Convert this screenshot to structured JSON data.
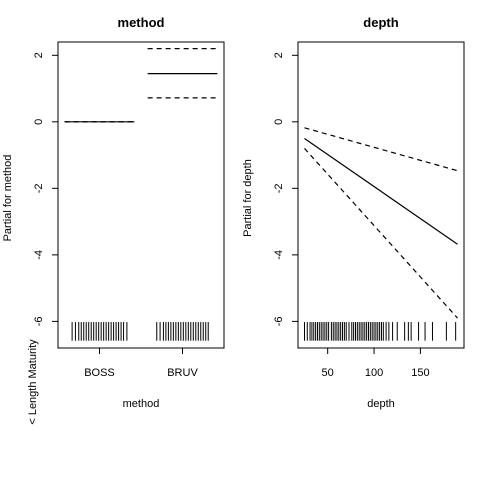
{
  "figure": {
    "left_label": "< Length Maturity"
  },
  "chart_data": [
    {
      "type": "line",
      "title": "method",
      "xlabel": "method",
      "ylabel": "Partial for method",
      "categories": [
        "BOSS",
        "BRUV"
      ],
      "ylim": [
        -6.8,
        2.4
      ],
      "yticks": [
        -6,
        -4,
        -2,
        0,
        2
      ],
      "series": [
        {
          "role": "fit",
          "style": "solid",
          "values": [
            0,
            1.45
          ]
        },
        {
          "role": "upper",
          "style": "dashed",
          "values": [
            0,
            2.2
          ]
        },
        {
          "role": "lower",
          "style": "dashed",
          "values": [
            0,
            0.72
          ]
        }
      ],
      "rug": [
        {
          "category": "BOSS",
          "offsets": [
            -0.33,
            -0.29,
            -0.25,
            -0.22,
            -0.19,
            -0.16,
            -0.13,
            -0.1,
            -0.07,
            -0.04,
            -0.01,
            0.02,
            0.05,
            0.08,
            0.11,
            0.14,
            0.17,
            0.2,
            0.23,
            0.26,
            0.29,
            0.33
          ]
        },
        {
          "category": "BRUV",
          "offsets": [
            -0.31,
            -0.27,
            -0.23,
            -0.2,
            -0.17,
            -0.14,
            -0.11,
            -0.08,
            -0.05,
            -0.02,
            0.01,
            0.04,
            0.07,
            0.1,
            0.13,
            0.16,
            0.19,
            0.22,
            0.25,
            0.28,
            0.31
          ]
        }
      ],
      "rug_y": -6.3
    },
    {
      "type": "line",
      "title": "depth",
      "xlabel": "depth",
      "ylabel": "Partial for depth",
      "xlim": [
        18,
        197
      ],
      "xticks": [
        50,
        100,
        150
      ],
      "ylim": [
        -6.8,
        2.4
      ],
      "yticks": [
        -6,
        -4,
        -2,
        0,
        2
      ],
      "series": [
        {
          "role": "fit",
          "style": "solid",
          "x": [
            25,
            190
          ],
          "y": [
            -0.5,
            -3.68
          ]
        },
        {
          "role": "upper",
          "style": "dashed",
          "x": [
            25,
            190
          ],
          "y": [
            -0.18,
            -1.47
          ]
        },
        {
          "role": "lower",
          "style": "dashed",
          "x": [
            25,
            190
          ],
          "y": [
            -0.8,
            -5.9
          ]
        }
      ],
      "rug_x": [
        25,
        28,
        31,
        33,
        35,
        37,
        39,
        41,
        43,
        45,
        47,
        49,
        51,
        54,
        56,
        58,
        60,
        62,
        64,
        66,
        68,
        70,
        73,
        76,
        78,
        80,
        82,
        84,
        86,
        88,
        90,
        92,
        94,
        96,
        98,
        100,
        102,
        104,
        106,
        108,
        110,
        113,
        116,
        120,
        125,
        133,
        137,
        140,
        148,
        155,
        163,
        178,
        188
      ],
      "rug_y": -6.3
    }
  ]
}
